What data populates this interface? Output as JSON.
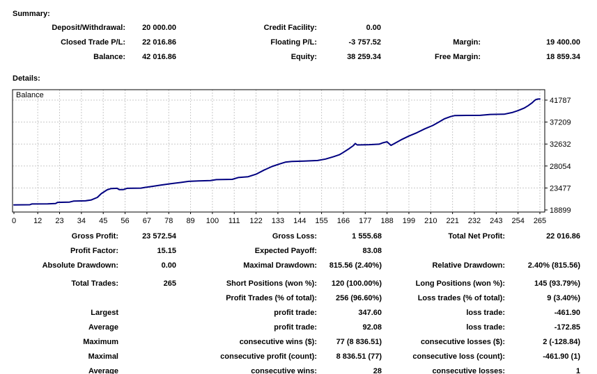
{
  "summary": {
    "heading": "Summary:",
    "rows": [
      {
        "cells": [
          "Deposit/Withdrawal:",
          "20 000.00",
          "Credit Facility:",
          "0.00",
          "",
          ""
        ]
      },
      {
        "cells": [
          "Closed Trade P/L:",
          "22 016.86",
          "Floating P/L:",
          "-3 757.52",
          "Margin:",
          "19 400.00"
        ]
      },
      {
        "cells": [
          "Balance:",
          "42 016.86",
          "Equity:",
          "38 259.34",
          "Free Margin:",
          "18 859.34"
        ]
      }
    ]
  },
  "details": {
    "heading": "Details:",
    "block1": [
      {
        "cells": [
          "Gross Profit:",
          "23 572.54",
          "Gross Loss:",
          "1 555.68",
          "Total Net Profit:",
          "22 016.86"
        ]
      },
      {
        "cells": [
          "Profit Factor:",
          "15.15",
          "Expected Payoff:",
          "83.08",
          "",
          ""
        ]
      },
      {
        "cells": [
          "Absolute Drawdown:",
          "0.00",
          "Maximal Drawdown:",
          "815.56 (2.40%)",
          "Relative Drawdown:",
          "2.40% (815.56)"
        ]
      }
    ],
    "block2": [
      {
        "cells": [
          "Total Trades:",
          "265",
          "Short Positions (won %):",
          "120 (100.00%)",
          "Long Positions (won %):",
          "145 (93.79%)"
        ]
      },
      {
        "cells": [
          "",
          "",
          "Profit Trades (% of total):",
          "256 (96.60%)",
          "Loss trades (% of total):",
          "9 (3.40%)"
        ]
      },
      {
        "cells": [
          "Largest",
          "",
          "profit trade:",
          "347.60",
          "loss trade:",
          "-461.90"
        ]
      },
      {
        "cells": [
          "Average",
          "",
          "profit trade:",
          "92.08",
          "loss trade:",
          "-172.85"
        ]
      },
      {
        "cells": [
          "Maximum",
          "",
          "consecutive wins ($):",
          "77 (8 836.51)",
          "consecutive losses ($):",
          "2 (-128.84)"
        ]
      },
      {
        "cells": [
          "Maximal",
          "",
          "consecutive profit (count):",
          "8 836.51 (77)",
          "consecutive loss (count):",
          "-461.90 (1)"
        ]
      },
      {
        "cells": [
          "Average",
          "",
          "consecutive wins:",
          "28",
          "consecutive losses:",
          "1"
        ]
      }
    ]
  },
  "chart_data": {
    "type": "line",
    "title": "Balance",
    "legend": "Balance",
    "xlabel": "",
    "ylabel": "",
    "x_ticks": [
      0,
      12,
      23,
      34,
      45,
      56,
      67,
      78,
      89,
      100,
      111,
      122,
      133,
      144,
      155,
      166,
      177,
      188,
      199,
      210,
      221,
      232,
      243,
      254,
      265
    ],
    "y_ticks": [
      41787,
      37209,
      32632,
      28054,
      23477,
      18899
    ],
    "xlim": [
      0,
      265
    ],
    "ylim": [
      18464,
      43960
    ],
    "grid": "dashed",
    "legend_position": "top-left",
    "line_color": "#000080",
    "grid_color": "#c8c8c8",
    "series": [
      {
        "name": "Balance",
        "points": [
          [
            0,
            19950
          ],
          [
            8,
            19990
          ],
          [
            9,
            20140
          ],
          [
            17,
            20180
          ],
          [
            21,
            20230
          ],
          [
            22,
            20480
          ],
          [
            28,
            20530
          ],
          [
            30,
            20740
          ],
          [
            36,
            20790
          ],
          [
            39,
            20980
          ],
          [
            42,
            21500
          ],
          [
            44,
            22300
          ],
          [
            47,
            23100
          ],
          [
            49,
            23360
          ],
          [
            52,
            23400
          ],
          [
            53,
            23150
          ],
          [
            55,
            23130
          ],
          [
            57,
            23400
          ],
          [
            64,
            23450
          ],
          [
            66,
            23600
          ],
          [
            70,
            23830
          ],
          [
            74,
            24080
          ],
          [
            79,
            24370
          ],
          [
            84,
            24620
          ],
          [
            88,
            24850
          ],
          [
            93,
            24950
          ],
          [
            99,
            25020
          ],
          [
            102,
            25220
          ],
          [
            110,
            25280
          ],
          [
            113,
            25650
          ],
          [
            118,
            25820
          ],
          [
            122,
            26350
          ],
          [
            126,
            27200
          ],
          [
            130,
            27950
          ],
          [
            134,
            28500
          ],
          [
            137,
            28880
          ],
          [
            140,
            29000
          ],
          [
            146,
            29080
          ],
          [
            153,
            29200
          ],
          [
            157,
            29500
          ],
          [
            161,
            30000
          ],
          [
            164,
            30400
          ],
          [
            166,
            30900
          ],
          [
            169,
            31700
          ],
          [
            171,
            32300
          ],
          [
            172,
            32750
          ],
          [
            173,
            32450
          ],
          [
            179,
            32500
          ],
          [
            184,
            32600
          ],
          [
            186,
            32900
          ],
          [
            188,
            33100
          ],
          [
            190,
            32350
          ],
          [
            192,
            32800
          ],
          [
            195,
            33500
          ],
          [
            199,
            34300
          ],
          [
            203,
            35000
          ],
          [
            207,
            35800
          ],
          [
            211,
            36500
          ],
          [
            214,
            37200
          ],
          [
            217,
            37900
          ],
          [
            220,
            38350
          ],
          [
            222,
            38550
          ],
          [
            228,
            38600
          ],
          [
            235,
            38620
          ],
          [
            240,
            38800
          ],
          [
            247,
            38850
          ],
          [
            251,
            39200
          ],
          [
            254,
            39600
          ],
          [
            257,
            40100
          ],
          [
            259,
            40600
          ],
          [
            261,
            41200
          ],
          [
            262,
            41600
          ],
          [
            263,
            41900
          ],
          [
            264,
            42000
          ],
          [
            265,
            42016.86
          ]
        ]
      }
    ]
  }
}
